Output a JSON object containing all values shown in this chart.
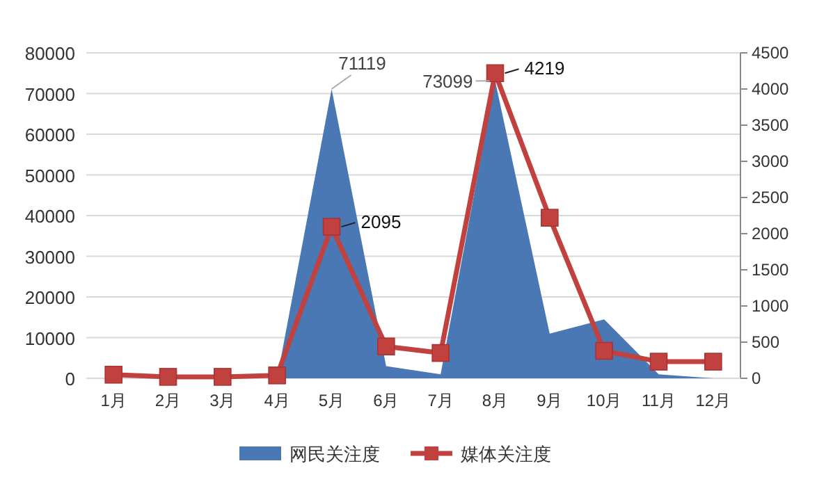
{
  "chart_data": {
    "type": "area",
    "categories": [
      "1月",
      "2月",
      "3月",
      "4月",
      "5月",
      "6月",
      "7月",
      "8月",
      "9月",
      "10月",
      "11月",
      "12月"
    ],
    "series": [
      {
        "name": "网民关注度",
        "color": "#4a78b5",
        "values": [
          0,
          0,
          0,
          0,
          71119,
          3000,
          1000,
          73099,
          11000,
          14500,
          1000,
          0
        ],
        "value_labels": [
          null,
          null,
          null,
          null,
          "71119",
          null,
          null,
          "73099",
          null,
          null,
          null,
          null
        ]
      },
      {
        "name": "媒体关注度",
        "type": "line",
        "axis": "y2",
        "color": "#c0413e",
        "marker": "square",
        "values": [
          50,
          20,
          20,
          40,
          2095,
          440,
          350,
          4219,
          2220,
          380,
          230,
          230
        ],
        "value_labels": [
          null,
          null,
          null,
          null,
          "2095",
          null,
          null,
          "4219",
          null,
          null,
          null,
          null
        ]
      }
    ],
    "ylim": [
      0,
      80000
    ],
    "yticks": [
      0,
      10000,
      20000,
      30000,
      40000,
      50000,
      60000,
      70000,
      80000
    ],
    "y2lim": [
      0,
      4500
    ],
    "y2ticks": [
      0,
      500,
      1000,
      1500,
      2000,
      2500,
      3000,
      3500,
      4000,
      4500
    ],
    "grid": "y",
    "legend": "bottom"
  }
}
